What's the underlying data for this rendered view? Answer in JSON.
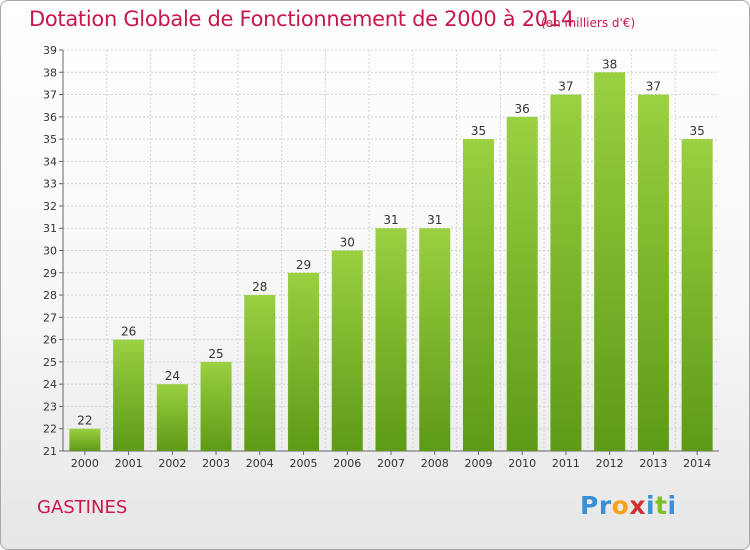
{
  "header": {
    "title": "Dotation Globale de Fonctionnement de 2000 à 2014",
    "subtitle": "(en milliers d'€)"
  },
  "footer": {
    "commune": "GASTINES",
    "logo": {
      "text": "Proxiti",
      "letters": [
        "P",
        "r",
        "o",
        "x",
        "i",
        "t",
        "i"
      ]
    }
  },
  "colors": {
    "title": "#c8184a",
    "bar_top": "#9ad041",
    "bar_bottom": "#5d9a16",
    "logo_letters": [
      "#3a8fd6",
      "#3a8fd6",
      "#f5a21a",
      "#d32f2f",
      "#3a8fd6",
      "#7cbf2a",
      "#3a8fd6"
    ]
  },
  "chart_data": {
    "type": "bar",
    "categories": [
      "2000",
      "2001",
      "2002",
      "2003",
      "2004",
      "2005",
      "2006",
      "2007",
      "2008",
      "2009",
      "2010",
      "2011",
      "2012",
      "2013",
      "2014"
    ],
    "values": [
      22,
      26,
      24,
      25,
      28,
      29,
      30,
      31,
      31,
      35,
      36,
      37,
      38,
      37,
      35
    ],
    "title": "Dotation Globale de Fonctionnement de 2000 à 2014",
    "subtitle": "(en milliers d'€)",
    "xlabel": "",
    "ylabel": "",
    "ylim": [
      21,
      39
    ],
    "yticks": [
      21,
      22,
      23,
      24,
      25,
      26,
      27,
      28,
      29,
      30,
      31,
      32,
      33,
      34,
      35,
      36,
      37,
      38,
      39
    ],
    "grid": true,
    "legend": "none",
    "data_labels": true
  }
}
